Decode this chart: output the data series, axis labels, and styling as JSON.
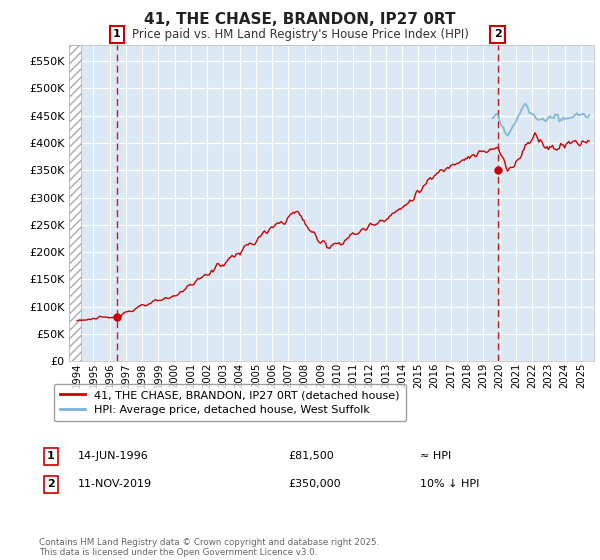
{
  "title": "41, THE CHASE, BRANDON, IP27 0RT",
  "subtitle": "Price paid vs. HM Land Registry's House Price Index (HPI)",
  "ylabel_values": [
    0,
    50000,
    100000,
    150000,
    200000,
    250000,
    300000,
    350000,
    400000,
    450000,
    500000,
    550000
  ],
  "ylim": [
    0,
    580000
  ],
  "xlim_start": 1993.5,
  "xlim_end": 2025.8,
  "sale1_year": 1996.45,
  "sale1_price": 81500,
  "sale1_label": "1",
  "sale1_date": "14-JUN-1996",
  "sale1_amount": "£81,500",
  "sale1_hpi": "≈ HPI",
  "sale2_year": 2019.87,
  "sale2_price": 350000,
  "sale2_label": "2",
  "sale2_date": "11-NOV-2019",
  "sale2_amount": "£350,000",
  "sale2_hpi": "10% ↓ HPI",
  "legend_line1": "41, THE CHASE, BRANDON, IP27 0RT (detached house)",
  "legend_line2": "HPI: Average price, detached house, West Suffolk",
  "footnote": "Contains HM Land Registry data © Crown copyright and database right 2025.\nThis data is licensed under the Open Government Licence v3.0.",
  "red_color": "#cc0000",
  "blue_color": "#7ab3d4",
  "bg_color": "#dce9f5",
  "grid_color": "#ffffff"
}
